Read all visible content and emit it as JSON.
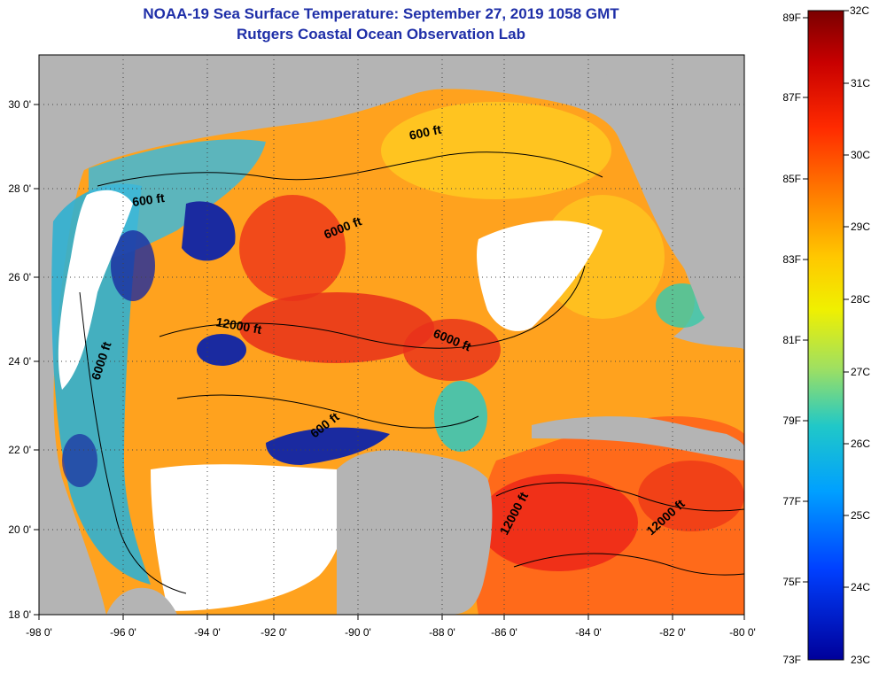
{
  "header": {
    "title": "NOAA-19 Sea Surface Temperature:  September 27, 2019 1058 GMT",
    "subtitle": "Rutgers Coastal Ocean Observation Lab"
  },
  "map": {
    "lon_ticks": [
      "-98 0'",
      "-96 0'",
      "-94 0'",
      "-92 0'",
      "-90 0'",
      "-88 0'",
      "-86 0'",
      "-84 0'",
      "-82 0'",
      "-80 0'"
    ],
    "lat_ticks": [
      "30 0'",
      "28 0'",
      "26 0'",
      "24 0'",
      "22 0'",
      "20 0'",
      "18 0'"
    ],
    "contour_labels": [
      {
        "text": "600 ft"
      },
      {
        "text": "600 ft"
      },
      {
        "text": "6000 ft"
      },
      {
        "text": "12000 ft"
      },
      {
        "text": "6000 ft"
      },
      {
        "text": "6000 ft"
      },
      {
        "text": "600 ft"
      },
      {
        "text": "12000 ft"
      },
      {
        "text": "12000 ft"
      }
    ],
    "colors": {
      "land": "#b4b4b4",
      "cloud": "#ffffff",
      "warm": "#ff6a1a",
      "hot": "#e8201a",
      "mid": "#ffb020",
      "cool": "#28c8c8",
      "cold": "#1028a0"
    }
  },
  "colorbar": {
    "fahrenheit_labels": [
      "89F",
      "87F",
      "85F",
      "83F",
      "81F",
      "79F",
      "77F",
      "75F",
      "73F"
    ],
    "celsius_labels": [
      "32C",
      "31C",
      "30C",
      "29C",
      "28C",
      "27C",
      "26C",
      "25C",
      "24C",
      "23C"
    ],
    "stops": [
      "#7a0000",
      "#c80000",
      "#ff2a00",
      "#ff7a00",
      "#ffc800",
      "#f0f000",
      "#a0e060",
      "#20c8c8",
      "#00a0ff",
      "#0040ff",
      "#00009a"
    ]
  }
}
